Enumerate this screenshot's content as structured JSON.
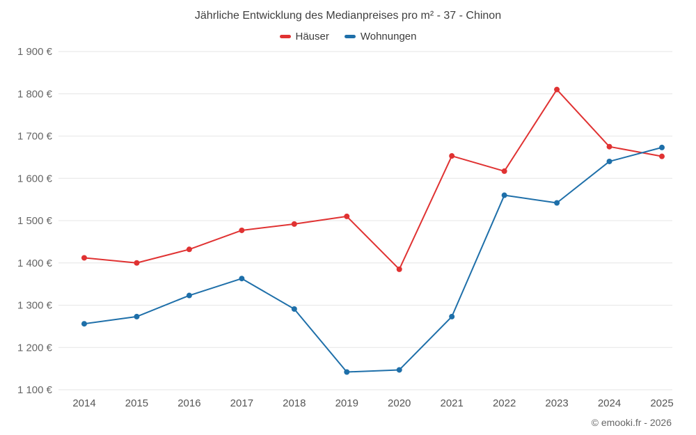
{
  "chart_data": {
    "type": "line",
    "title": "Jährliche Entwicklung des Medianpreises pro m² - 37 - Chinon",
    "categories": [
      "2014",
      "2015",
      "2016",
      "2017",
      "2018",
      "2019",
      "2020",
      "2021",
      "2022",
      "2023",
      "2024",
      "2025"
    ],
    "series": [
      {
        "name": "Häuser",
        "color": "#e03232",
        "values": [
          1412,
          1400,
          1432,
          1477,
          1492,
          1510,
          1385,
          1653,
          1617,
          1810,
          1675,
          1652
        ]
      },
      {
        "name": "Wohnungen",
        "color": "#1e6fa9",
        "values": [
          1256,
          1273,
          1323,
          1363,
          1291,
          1142,
          1147,
          1273,
          1560,
          1542,
          1640,
          1673
        ]
      }
    ],
    "ylim": [
      1100,
      1900
    ],
    "ytick_step": 100,
    "y_suffix": " €",
    "grid": true,
    "legend_position": "top",
    "xlabel": "",
    "ylabel": ""
  },
  "footer": {
    "copyright": "© emooki.fr - 2026"
  },
  "colors": {
    "grid": "#e6e6e6",
    "axis_text": "#666666",
    "x_axis_text": "#555555",
    "title_text": "#3f3f3f"
  }
}
